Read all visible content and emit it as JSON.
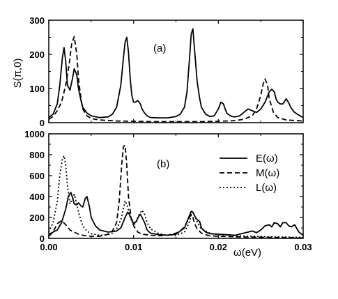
{
  "chart_data": [
    {
      "panel": "(a)",
      "type": "line",
      "ylabel": "S(π,0)",
      "xlim": [
        0,
        0.03
      ],
      "ylim": [
        0,
        300
      ],
      "yticks": [
        0,
        100,
        200,
        300
      ],
      "series": [
        {
          "key": "E",
          "style": "solid",
          "x": [
            0.0,
            0.0005,
            0.001,
            0.0013,
            0.0016,
            0.0018,
            0.002,
            0.0022,
            0.0025,
            0.0028,
            0.003,
            0.0033,
            0.0035,
            0.0038,
            0.004,
            0.0045,
            0.005,
            0.006,
            0.007,
            0.0075,
            0.008,
            0.0085,
            0.0088,
            0.009,
            0.0092,
            0.0094,
            0.0096,
            0.0098,
            0.01,
            0.0102,
            0.0105,
            0.0108,
            0.011,
            0.0113,
            0.0116,
            0.012,
            0.013,
            0.014,
            0.015,
            0.0155,
            0.016,
            0.0163,
            0.0166,
            0.0168,
            0.017,
            0.0172,
            0.0175,
            0.0178,
            0.018,
            0.0185,
            0.019,
            0.0195,
            0.02,
            0.0203,
            0.0206,
            0.0208,
            0.021,
            0.0213,
            0.0216,
            0.022,
            0.0225,
            0.023,
            0.0235,
            0.024,
            0.0245,
            0.025,
            0.0255,
            0.026,
            0.0263,
            0.0266,
            0.0268,
            0.027,
            0.0273,
            0.0276,
            0.0278,
            0.028,
            0.0283,
            0.0286,
            0.029,
            0.0295,
            0.03
          ],
          "y": [
            15,
            25,
            55,
            110,
            190,
            220,
            180,
            110,
            95,
            130,
            158,
            140,
            100,
            65,
            45,
            28,
            20,
            15,
            17,
            25,
            45,
            110,
            190,
            235,
            250,
            205,
            130,
            80,
            60,
            60,
            65,
            55,
            40,
            28,
            20,
            15,
            14,
            14,
            18,
            25,
            45,
            90,
            190,
            260,
            275,
            210,
            120,
            70,
            45,
            25,
            18,
            20,
            40,
            60,
            55,
            40,
            28,
            22,
            18,
            17,
            20,
            30,
            40,
            35,
            30,
            40,
            60,
            90,
            98,
            90,
            70,
            60,
            55,
            55,
            62,
            70,
            58,
            42,
            30,
            22,
            15
          ]
        },
        {
          "key": "M",
          "style": "dashed",
          "x": [
            0.0,
            0.0005,
            0.001,
            0.0015,
            0.002,
            0.0024,
            0.0027,
            0.003,
            0.0033,
            0.0035,
            0.0038,
            0.004,
            0.0045,
            0.005,
            0.006,
            0.008,
            0.01,
            0.012,
            0.015,
            0.018,
            0.02,
            0.022,
            0.023,
            0.024,
            0.0245,
            0.025,
            0.0253,
            0.0255,
            0.0258,
            0.026,
            0.0265,
            0.027,
            0.028,
            0.03
          ],
          "y": [
            10,
            18,
            35,
            60,
            110,
            170,
            230,
            252,
            200,
            130,
            70,
            40,
            20,
            12,
            8,
            5,
            4,
            3,
            3,
            3,
            4,
            6,
            10,
            20,
            40,
            80,
            115,
            128,
            110,
            70,
            30,
            15,
            8,
            5
          ]
        }
      ]
    },
    {
      "panel": "(b)",
      "type": "line",
      "xlabel": "ω(eV)",
      "xlim": [
        0,
        0.03
      ],
      "ylim": [
        0,
        1000
      ],
      "xticks": [
        0.0,
        0.01,
        0.02,
        0.03
      ],
      "yticks": [
        0,
        200,
        400,
        600,
        800,
        1000
      ],
      "legend_position": "right",
      "series": [
        {
          "key": "E",
          "name": "E(ω)",
          "style": "solid",
          "x": [
            0.0,
            0.001,
            0.0015,
            0.002,
            0.0023,
            0.0026,
            0.0028,
            0.003,
            0.0033,
            0.0035,
            0.0038,
            0.004,
            0.0043,
            0.0045,
            0.0048,
            0.005,
            0.0055,
            0.006,
            0.007,
            0.008,
            0.0085,
            0.009,
            0.0093,
            0.0095,
            0.0098,
            0.01,
            0.0103,
            0.0106,
            0.0108,
            0.011,
            0.0113,
            0.0116,
            0.012,
            0.013,
            0.014,
            0.015,
            0.016,
            0.0165,
            0.0168,
            0.017,
            0.0173,
            0.0175,
            0.0178,
            0.018,
            0.0185,
            0.019,
            0.02,
            0.021,
            0.022,
            0.023,
            0.0235,
            0.024,
            0.0245,
            0.025,
            0.0255,
            0.026,
            0.0263,
            0.0266,
            0.027,
            0.0273,
            0.0276,
            0.028,
            0.0283,
            0.0286,
            0.029,
            0.0295,
            0.03
          ],
          "y": [
            40,
            80,
            150,
            280,
            400,
            440,
            390,
            330,
            320,
            340,
            310,
            300,
            380,
            400,
            300,
            200,
            120,
            80,
            60,
            70,
            100,
            200,
            250,
            230,
            180,
            140,
            160,
            210,
            230,
            200,
            150,
            80,
            50,
            35,
            30,
            40,
            100,
            200,
            260,
            250,
            200,
            180,
            160,
            100,
            60,
            45,
            40,
            35,
            30,
            50,
            60,
            70,
            55,
            80,
            120,
            130,
            110,
            150,
            140,
            110,
            150,
            150,
            120,
            110,
            130,
            60,
            30
          ]
        },
        {
          "key": "M",
          "name": "M(ω)",
          "style": "dashed",
          "x": [
            0.0,
            0.0005,
            0.001,
            0.0015,
            0.002,
            0.0025,
            0.003,
            0.0035,
            0.004,
            0.005,
            0.006,
            0.007,
            0.0075,
            0.008,
            0.0083,
            0.0086,
            0.0088,
            0.009,
            0.0092,
            0.0094,
            0.0097,
            0.01,
            0.0105,
            0.011,
            0.012,
            0.013,
            0.014,
            0.015,
            0.0155,
            0.016,
            0.0165,
            0.0168,
            0.017,
            0.0172,
            0.0175,
            0.018,
            0.0185,
            0.019,
            0.02,
            0.022,
            0.024,
            0.026,
            0.028,
            0.03
          ],
          "y": [
            20,
            60,
            140,
            170,
            130,
            80,
            60,
            40,
            30,
            20,
            20,
            40,
            70,
            150,
            350,
            700,
            880,
            890,
            700,
            400,
            200,
            120,
            60,
            40,
            30,
            25,
            30,
            50,
            70,
            110,
            190,
            230,
            200,
            140,
            90,
            50,
            35,
            25,
            20,
            15,
            12,
            10,
            8,
            5
          ]
        },
        {
          "key": "L",
          "name": "L(ω)",
          "style": "dotted",
          "x": [
            0.0,
            0.0005,
            0.001,
            0.0013,
            0.0016,
            0.0018,
            0.002,
            0.0022,
            0.0025,
            0.0028,
            0.003,
            0.0033,
            0.0035,
            0.0038,
            0.004,
            0.0045,
            0.005,
            0.006,
            0.007,
            0.0075,
            0.008,
            0.0085,
            0.0088,
            0.009,
            0.0093,
            0.0096,
            0.01,
            0.0103,
            0.0106,
            0.011,
            0.0113,
            0.0116,
            0.012,
            0.013,
            0.014,
            0.015,
            0.016,
            0.0165,
            0.0168,
            0.017,
            0.0173,
            0.0176,
            0.018,
            0.019,
            0.02,
            0.022,
            0.024,
            0.026,
            0.028,
            0.03
          ],
          "y": [
            60,
            150,
            350,
            600,
            760,
            790,
            700,
            500,
            330,
            380,
            420,
            330,
            250,
            170,
            120,
            70,
            45,
            30,
            35,
            50,
            90,
            180,
            280,
            360,
            300,
            200,
            130,
            150,
            220,
            270,
            230,
            150,
            90,
            45,
            30,
            30,
            60,
            140,
            220,
            250,
            200,
            140,
            90,
            50,
            35,
            25,
            20,
            15,
            12,
            10
          ]
        }
      ]
    }
  ],
  "labels": {
    "ylabel_a": "S(π,0)",
    "panel_a": "(a)",
    "panel_b": "(b)",
    "xlabel": "ω(eV)",
    "ticks_a_y": [
      "0",
      "100",
      "200",
      "300"
    ],
    "ticks_b_y": [
      "0",
      "200",
      "400",
      "600",
      "800",
      "1000"
    ],
    "ticks_x": [
      "0.00",
      "0.01",
      "0.02",
      "0.03"
    ],
    "legend": [
      "E(ω)",
      "M(ω)",
      "L(ω)"
    ]
  }
}
